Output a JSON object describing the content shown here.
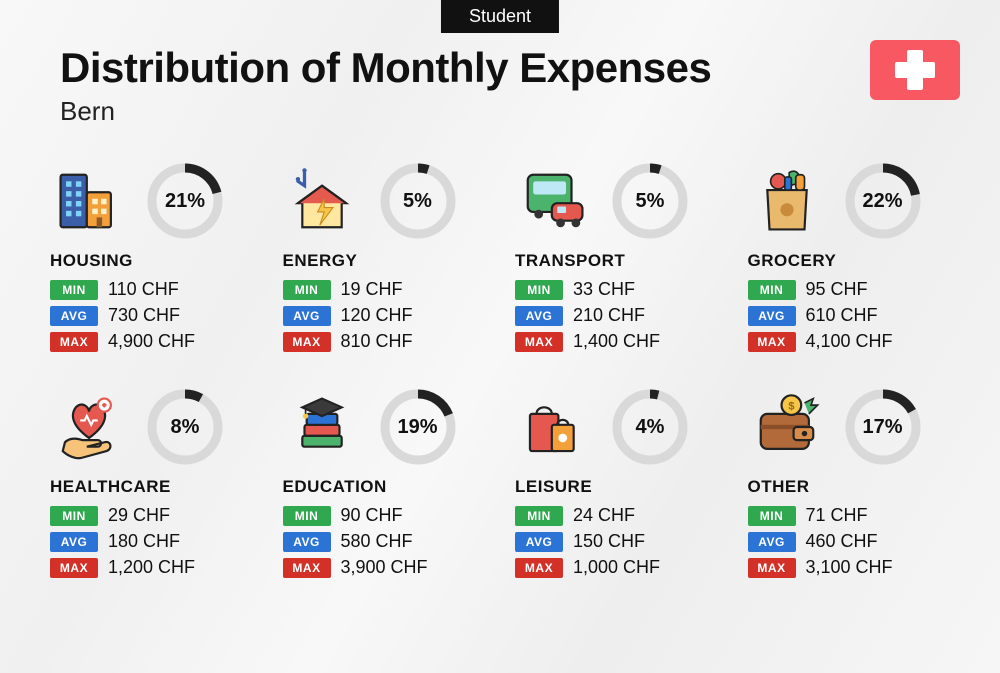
{
  "badge": "Student",
  "title": "Distribution of Monthly Expenses",
  "city": "Bern",
  "currency": "CHF",
  "labels": {
    "min": "MIN",
    "avg": "AVG",
    "max": "MAX"
  },
  "colors": {
    "min": "#2fa84f",
    "avg": "#2b74d6",
    "max": "#d33028",
    "donut_fg": "#222222",
    "donut_bg": "#d9d9d9",
    "flag_bg": "#f85861",
    "badge_bg": "#111111"
  },
  "donut": {
    "stroke_width": 9,
    "radius": 33,
    "size": 78
  },
  "categories": [
    {
      "key": "housing",
      "name": "HOUSING",
      "percent": 21,
      "min": "110 CHF",
      "avg": "730 CHF",
      "max": "4,900 CHF",
      "icon": "buildings"
    },
    {
      "key": "energy",
      "name": "ENERGY",
      "percent": 5,
      "min": "19 CHF",
      "avg": "120 CHF",
      "max": "810 CHF",
      "icon": "energy-house"
    },
    {
      "key": "transport",
      "name": "TRANSPORT",
      "percent": 5,
      "min": "33 CHF",
      "avg": "210 CHF",
      "max": "1,400 CHF",
      "icon": "bus-car"
    },
    {
      "key": "grocery",
      "name": "GROCERY",
      "percent": 22,
      "min": "95 CHF",
      "avg": "610 CHF",
      "max": "4,100 CHF",
      "icon": "grocery-bag"
    },
    {
      "key": "healthcare",
      "name": "HEALTHCARE",
      "percent": 8,
      "min": "29 CHF",
      "avg": "180 CHF",
      "max": "1,200 CHF",
      "icon": "heart-hand"
    },
    {
      "key": "education",
      "name": "EDUCATION",
      "percent": 19,
      "min": "90 CHF",
      "avg": "580 CHF",
      "max": "3,900 CHF",
      "icon": "grad-books"
    },
    {
      "key": "leisure",
      "name": "LEISURE",
      "percent": 4,
      "min": "24 CHF",
      "avg": "150 CHF",
      "max": "1,000 CHF",
      "icon": "shopping-bags"
    },
    {
      "key": "other",
      "name": "OTHER",
      "percent": 17,
      "min": "71 CHF",
      "avg": "460 CHF",
      "max": "3,100 CHF",
      "icon": "wallet"
    }
  ]
}
